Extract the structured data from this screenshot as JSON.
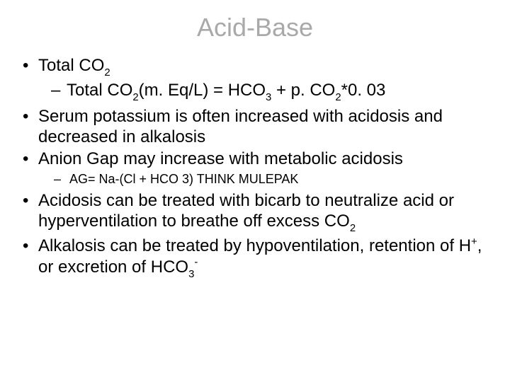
{
  "slide": {
    "background_color": "#ffffff",
    "text_color": "#000000",
    "title_color": "#a9a9a9",
    "font_family": "Arial",
    "title": "Acid-Base",
    "title_fontsize": 36,
    "bullet_fontsize": 24,
    "subbullet_small_fontsize": 18,
    "bullets": [
      {
        "text": "Total CO",
        "sub": "2",
        "children": [
          {
            "prefix": "Total CO",
            "sub1": "2",
            "mid1": "(m. Eq/L) = HCO",
            "sub2": "3",
            "mid2": " + p. CO",
            "sub3": "2",
            "tail": "*0. 03"
          }
        ]
      },
      {
        "text": "Serum potassium is often increased with acidosis and decreased in alkalosis"
      },
      {
        "text": "Anion Gap may increase with metabolic acidosis",
        "children_small": [
          {
            "text": "AG= Na-(Cl + HCO 3)   THINK MULEPAK"
          }
        ]
      },
      {
        "prefix": "Acidosis can be treated with bicarb to neutralize acid or hyperventilation to breathe off excess CO",
        "sub": "2"
      },
      {
        "prefix": "Alkalosis can be treated by hypoventilation, retention of H",
        "sup1": "+",
        "mid1": ", or excretion of HCO",
        "sub1": "3",
        "sup2": "-"
      }
    ]
  }
}
